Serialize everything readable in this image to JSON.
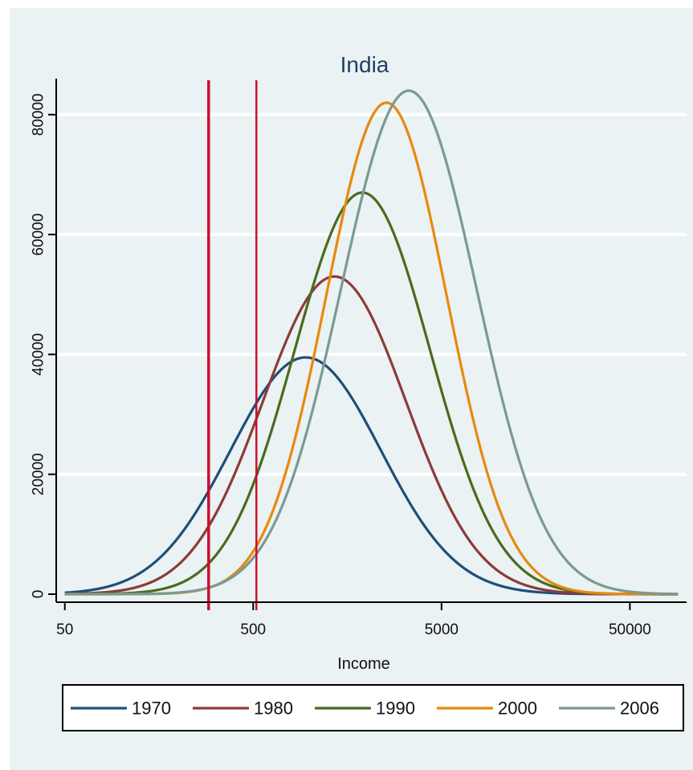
{
  "chart_data": {
    "type": "line",
    "title": "India",
    "xlabel": "Income",
    "ylabel": "",
    "x_scale": "log",
    "xlim": [
      45,
      100000
    ],
    "ylim": [
      0,
      86000
    ],
    "x_ticks": [
      50,
      500,
      5000,
      50000
    ],
    "x_tick_labels": [
      "50",
      "500",
      "5000",
      "50000"
    ],
    "y_ticks": [
      0,
      20000,
      40000,
      60000,
      80000
    ],
    "y_tick_labels": [
      "0",
      "20000",
      "40000",
      "60000",
      "80000"
    ],
    "grid": true,
    "legend_position": "bottom",
    "vertical_lines": [
      {
        "x": 290,
        "color": "#c8102e"
      },
      {
        "x": 520,
        "color": "#c8102e"
      }
    ],
    "series": [
      {
        "name": "1970",
        "color": "#1f4e79",
        "peak_x": 950,
        "peak_y": 39500,
        "sigma_log10": 0.4,
        "x_start": 50,
        "x_end": 90000
      },
      {
        "name": "1980",
        "color": "#8e3a3a",
        "peak_x": 1350,
        "peak_y": 53000,
        "sigma_log10": 0.38,
        "x_start": 50,
        "x_end": 90000
      },
      {
        "name": "1990",
        "color": "#4a6b1f",
        "peak_x": 1900,
        "peak_y": 67000,
        "sigma_log10": 0.36,
        "x_start": 50,
        "x_end": 90000
      },
      {
        "name": "2000",
        "color": "#e8890c",
        "peak_x": 2550,
        "peak_y": 82000,
        "sigma_log10": 0.32,
        "x_start": 50,
        "x_end": 90000
      },
      {
        "name": "2006",
        "color": "#7a9a92",
        "peak_x": 3350,
        "peak_y": 84000,
        "sigma_log10": 0.36,
        "x_start": 50,
        "x_end": 90000
      }
    ]
  }
}
